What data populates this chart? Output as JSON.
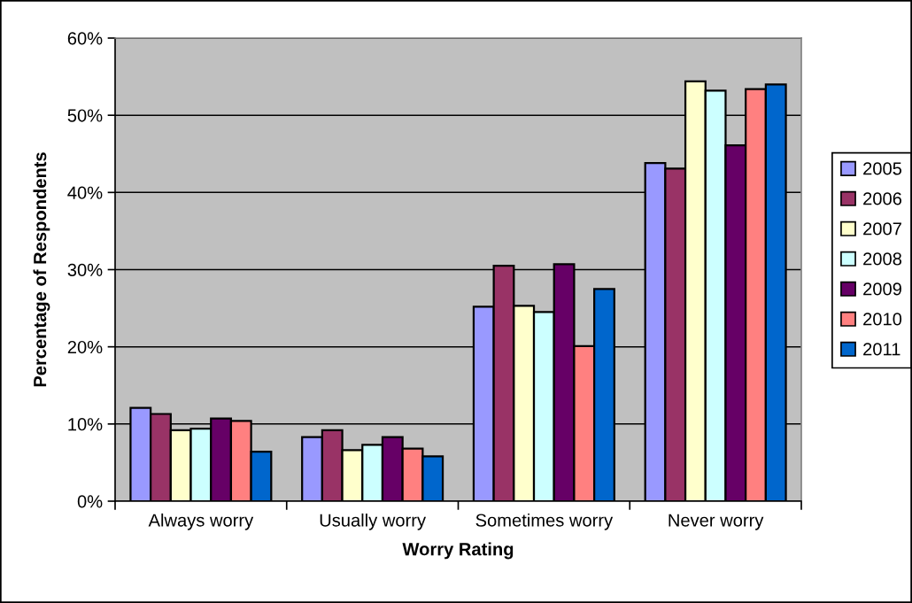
{
  "chart_data": {
    "type": "bar",
    "xlabel": "Worry Rating",
    "ylabel": "Percentage of Respondents",
    "categories": [
      "Always worry",
      "Usually worry",
      "Sometimes worry",
      "Never worry"
    ],
    "series": [
      {
        "name": "2005",
        "color": "#9999ff",
        "values": [
          12.1,
          8.3,
          25.2,
          43.8
        ]
      },
      {
        "name": "2006",
        "color": "#993366",
        "values": [
          11.3,
          9.2,
          30.5,
          43.1
        ]
      },
      {
        "name": "2007",
        "color": "#ffffcc",
        "values": [
          9.2,
          6.6,
          25.3,
          54.4
        ]
      },
      {
        "name": "2008",
        "color": "#ccffff",
        "values": [
          9.4,
          7.3,
          24.5,
          53.2
        ]
      },
      {
        "name": "2009",
        "color": "#660066",
        "values": [
          10.7,
          8.3,
          30.7,
          46.1
        ]
      },
      {
        "name": "2010",
        "color": "#ff8080",
        "values": [
          10.4,
          6.8,
          20.1,
          53.4
        ]
      },
      {
        "name": "2011",
        "color": "#0066cc",
        "values": [
          6.4,
          5.8,
          27.5,
          54.0
        ]
      }
    ],
    "ylim": [
      0,
      60
    ],
    "yticks": [
      {
        "value": 0,
        "label": "0%"
      },
      {
        "value": 10,
        "label": "10%"
      },
      {
        "value": 20,
        "label": "20%"
      },
      {
        "value": 30,
        "label": "30%"
      },
      {
        "value": 40,
        "label": "40%"
      },
      {
        "value": 50,
        "label": "50%"
      },
      {
        "value": 60,
        "label": "60%"
      }
    ],
    "grid": "y",
    "legend": "right"
  }
}
